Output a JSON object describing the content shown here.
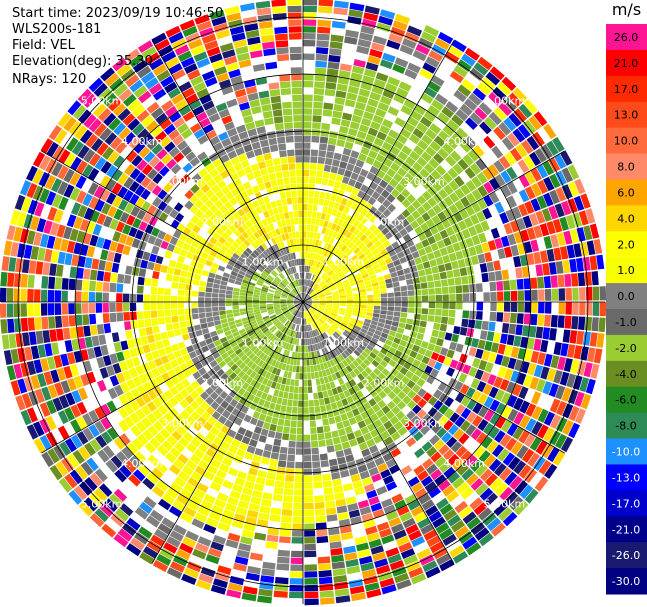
{
  "header": {
    "start_time": "Start time: 2023/09/19 10:46:50",
    "instrument": "WLS200s-181",
    "field": "Field: VEL",
    "elevation": "Elevation(deg): 35.30",
    "nrays": "NRays: 120"
  },
  "colorbar": {
    "unit": "m/s",
    "levels": [
      {
        "label": "26.0",
        "color": "#ff1493"
      },
      {
        "label": "21.0",
        "color": "#ff0000"
      },
      {
        "label": "17.0",
        "color": "#ff2a00"
      },
      {
        "label": "13.0",
        "color": "#ff4a1a"
      },
      {
        "label": "10.0",
        "color": "#ff6a3d"
      },
      {
        "label": "8.0",
        "color": "#ff8a6a"
      },
      {
        "label": "6.0",
        "color": "#ffa500"
      },
      {
        "label": "4.0",
        "color": "#ffd700"
      },
      {
        "label": "2.0",
        "color": "#ffff00"
      },
      {
        "label": "1.0",
        "color": "#f8ff00"
      },
      {
        "label": "0.0",
        "color": "#808080"
      },
      {
        "label": "-1.0",
        "color": "#696969"
      },
      {
        "label": "-2.0",
        "color": "#9acd32"
      },
      {
        "label": "-4.0",
        "color": "#6b8e23"
      },
      {
        "label": "-6.0",
        "color": "#228b22"
      },
      {
        "label": "-8.0",
        "color": "#2e8b57"
      },
      {
        "label": "-10.0",
        "color": "#1e90ff"
      },
      {
        "label": "-13.0",
        "color": "#0000ff"
      },
      {
        "label": "-17.0",
        "color": "#0000cd"
      },
      {
        "label": "-21.0",
        "color": "#00008b"
      },
      {
        "label": "-26.0",
        "color": "#191970"
      },
      {
        "label": "-30.0",
        "color": "#000080"
      }
    ]
  },
  "chart_data": {
    "type": "ppi",
    "field": "VEL",
    "unit": "m/s",
    "nrays": 120,
    "range_rings_km": [
      1.0,
      2.0,
      3.0,
      4.0,
      5.0
    ],
    "range_ring_labels": [
      "1.00km",
      "2.00km",
      "3.00km",
      "4.00km",
      "5.00km"
    ],
    "max_range_km": 5.3,
    "azimuth_spokes_deg": [
      0,
      30,
      60,
      90,
      120,
      150,
      180,
      210,
      240,
      270,
      300,
      330
    ]
  }
}
